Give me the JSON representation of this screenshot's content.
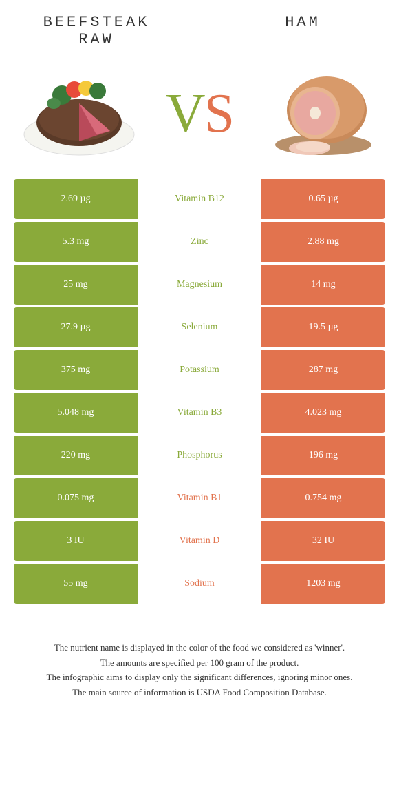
{
  "colors": {
    "left": "#8aaa3a",
    "right": "#e2734e",
    "mid_bg": "#ffffff",
    "text": "#333333"
  },
  "titles": {
    "left": "Beefsteak\nraw",
    "right": "Ham"
  },
  "vs": {
    "v": "V",
    "s": "S"
  },
  "rows": [
    {
      "left": "2.69 µg",
      "label": "Vitamin B12",
      "right": "0.65 µg",
      "winner": "left"
    },
    {
      "left": "5.3 mg",
      "label": "Zinc",
      "right": "2.88 mg",
      "winner": "left"
    },
    {
      "left": "25 mg",
      "label": "Magnesium",
      "right": "14 mg",
      "winner": "left"
    },
    {
      "left": "27.9 µg",
      "label": "Selenium",
      "right": "19.5 µg",
      "winner": "left"
    },
    {
      "left": "375 mg",
      "label": "Potassium",
      "right": "287 mg",
      "winner": "left"
    },
    {
      "left": "5.048 mg",
      "label": "Vitamin B3",
      "right": "4.023 mg",
      "winner": "left"
    },
    {
      "left": "220 mg",
      "label": "Phosphorus",
      "right": "196 mg",
      "winner": "left"
    },
    {
      "left": "0.075 mg",
      "label": "Vitamin B1",
      "right": "0.754 mg",
      "winner": "right"
    },
    {
      "left": "3 IU",
      "label": "Vitamin D",
      "right": "32 IU",
      "winner": "right"
    },
    {
      "left": "55 mg",
      "label": "Sodium",
      "right": "1203 mg",
      "winner": "right"
    }
  ],
  "footer": [
    "The nutrient name is displayed in the color of the food we considered as 'winner'.",
    "The amounts are specified per 100 gram of the product.",
    "The infographic aims to display only the significant differences, ignoring minor ones.",
    "The main source of information is USDA Food Composition Database."
  ]
}
